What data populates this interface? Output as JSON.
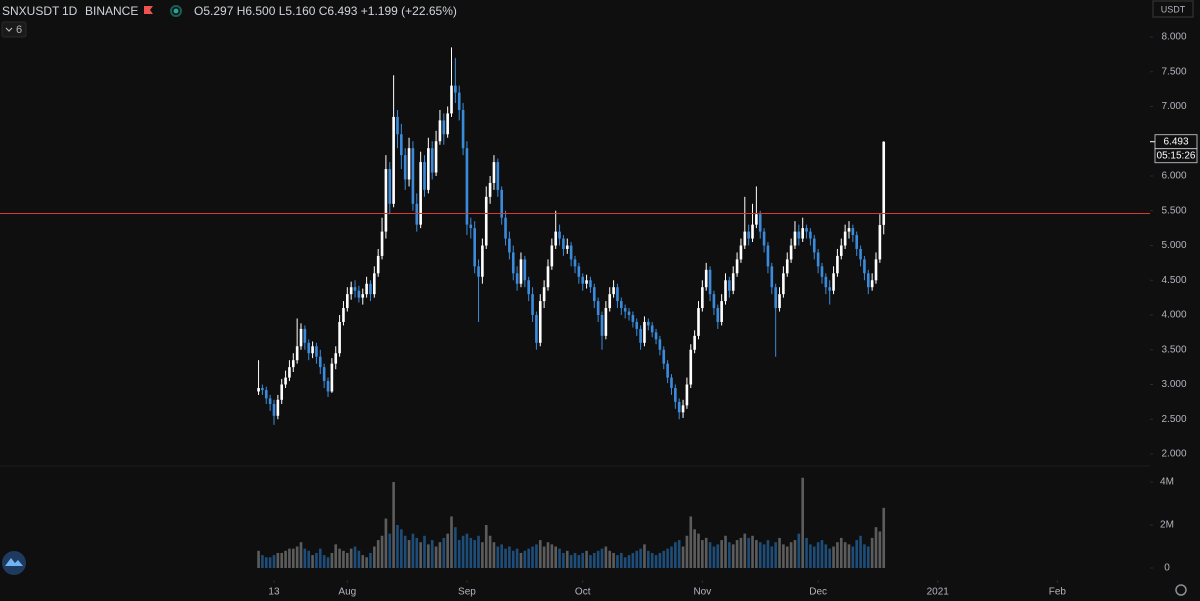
{
  "chart_data": {
    "type": "candlestick",
    "symbol": "SNXUSDT",
    "interval": "1D",
    "exchange": "BINANCE",
    "ohlc_legend": "O5.297 H6.500 L5.160 C6.493 +1.199 (+22.65%)",
    "indicators_hidden": 6,
    "currency": "USDT",
    "countdown": "05:15:26",
    "up_color": "#ffffff",
    "down_color": "#3b8bdb",
    "open": [
      2.9,
      2.95,
      2.92,
      2.8,
      2.72,
      2.55,
      2.78,
      3.0,
      3.1,
      3.25,
      3.35,
      3.55,
      3.8,
      3.6,
      3.45,
      3.55,
      3.4,
      3.25,
      3.05,
      2.9,
      3.3,
      3.45,
      3.9,
      4.1,
      4.3,
      4.4,
      4.35,
      4.25,
      4.3,
      4.45,
      4.3,
      4.6,
      4.85,
      5.2,
      6.1,
      5.6,
      6.85,
      6.6,
      6.3,
      5.95,
      6.4,
      5.6,
      5.3,
      6.2,
      5.8,
      6.4,
      6.05,
      6.5,
      6.8,
      6.6,
      6.9,
      7.3,
      7.2,
      6.95,
      6.4,
      5.3,
      5.25,
      4.7,
      4.55,
      5.0,
      5.7,
      5.9,
      6.2,
      5.8,
      5.4,
      5.1,
      4.9,
      4.6,
      4.45,
      4.8,
      4.5,
      4.3,
      4.0,
      3.6,
      4.2,
      4.4,
      4.7,
      5.0,
      5.2,
      5.1,
      4.95,
      5.0,
      4.8,
      4.7,
      4.55,
      4.45,
      4.5,
      4.4,
      4.2,
      4.0,
      3.7,
      4.1,
      4.3,
      4.4,
      4.2,
      4.1,
      4.05,
      4.0,
      3.9,
      3.8,
      3.6,
      3.9,
      3.85,
      3.75,
      3.65,
      3.5,
      3.3,
      3.1,
      2.95,
      2.75,
      2.6,
      2.7,
      3.0,
      3.5,
      3.7,
      4.1,
      4.4,
      4.65,
      4.3,
      4.1,
      3.9,
      4.2,
      4.5,
      4.35,
      4.6,
      4.8,
      5.0,
      5.2,
      5.1,
      5.3,
      5.45,
      5.2,
      5.0,
      4.7,
      4.4,
      4.1,
      4.3,
      4.6,
      4.8,
      5.0,
      5.2,
      5.1,
      5.25,
      5.2,
      5.1,
      4.9,
      4.7,
      4.55,
      4.4,
      4.35,
      4.6,
      4.85,
      5.0,
      5.2,
      5.25,
      5.15,
      4.95,
      4.8,
      4.6,
      4.4,
      4.5,
      4.8,
      5.297
    ],
    "high": [
      3.35,
      3.0,
      2.97,
      2.85,
      2.78,
      2.85,
      3.08,
      3.2,
      3.35,
      3.45,
      3.95,
      3.88,
      3.85,
      3.65,
      3.62,
      3.6,
      3.5,
      3.3,
      3.1,
      3.38,
      3.55,
      4.0,
      4.2,
      4.4,
      4.48,
      4.5,
      4.42,
      4.38,
      4.55,
      4.5,
      4.7,
      4.95,
      5.4,
      6.3,
      6.2,
      7.45,
      6.95,
      6.75,
      6.4,
      6.55,
      6.5,
      5.75,
      6.35,
      6.3,
      6.55,
      6.5,
      6.65,
      6.95,
      6.9,
      7.0,
      7.85,
      7.7,
      7.3,
      7.05,
      6.5,
      5.4,
      5.35,
      4.8,
      5.1,
      5.85,
      6.0,
      6.3,
      6.25,
      5.85,
      5.5,
      5.2,
      5.0,
      4.7,
      4.9,
      4.85,
      4.55,
      4.4,
      4.05,
      4.3,
      4.5,
      4.8,
      5.1,
      5.5,
      5.3,
      5.15,
      5.1,
      5.05,
      4.85,
      4.75,
      4.6,
      4.58,
      4.55,
      4.45,
      4.25,
      4.05,
      4.2,
      4.4,
      4.5,
      4.45,
      4.25,
      4.15,
      4.1,
      4.05,
      3.95,
      3.85,
      3.98,
      3.95,
      3.9,
      3.8,
      3.7,
      3.55,
      3.35,
      3.15,
      3.0,
      2.8,
      2.78,
      3.1,
      3.58,
      3.78,
      4.2,
      4.5,
      4.75,
      4.7,
      4.35,
      4.15,
      4.3,
      4.6,
      4.55,
      4.7,
      4.9,
      5.1,
      5.7,
      5.3,
      5.6,
      5.85,
      5.5,
      5.25,
      5.05,
      4.75,
      4.45,
      4.4,
      4.7,
      4.9,
      5.1,
      5.35,
      5.3,
      5.4,
      5.3,
      5.25,
      5.15,
      4.95,
      4.75,
      4.6,
      4.5,
      4.7,
      4.95,
      5.1,
      5.3,
      5.35,
      5.3,
      5.2,
      5.0,
      4.85,
      4.65,
      4.6,
      4.9,
      5.45,
      6.5
    ],
    "low": [
      2.85,
      2.85,
      2.72,
      2.62,
      2.42,
      2.5,
      2.72,
      2.95,
      3.05,
      3.18,
      3.3,
      3.5,
      3.5,
      3.35,
      3.38,
      3.3,
      3.15,
      2.95,
      2.82,
      2.88,
      3.22,
      3.4,
      3.85,
      4.05,
      4.22,
      4.25,
      4.18,
      4.15,
      4.25,
      4.2,
      4.25,
      4.55,
      4.8,
      5.1,
      5.45,
      5.55,
      6.4,
      6.1,
      5.8,
      5.85,
      5.5,
      5.2,
      5.25,
      5.7,
      5.75,
      5.95,
      6.0,
      6.45,
      6.45,
      6.55,
      6.85,
      7.05,
      6.8,
      6.3,
      5.15,
      5.1,
      4.6,
      3.9,
      4.45,
      4.95,
      5.6,
      5.8,
      5.7,
      5.3,
      5.0,
      4.8,
      4.5,
      4.35,
      4.4,
      4.4,
      4.2,
      3.9,
      3.5,
      3.55,
      4.1,
      4.35,
      4.65,
      4.95,
      5.0,
      4.85,
      4.88,
      4.7,
      4.6,
      4.45,
      4.35,
      4.38,
      4.32,
      4.1,
      3.9,
      3.5,
      3.65,
      4.05,
      4.25,
      4.1,
      4.0,
      3.95,
      3.92,
      3.82,
      3.7,
      3.5,
      3.55,
      3.78,
      3.68,
      3.58,
      3.42,
      3.22,
      3.02,
      2.85,
      2.65,
      2.5,
      2.52,
      2.65,
      2.95,
      3.45,
      3.65,
      4.05,
      4.35,
      4.2,
      4.0,
      3.8,
      3.85,
      4.15,
      4.25,
      4.3,
      4.55,
      4.75,
      4.95,
      5.0,
      5.05,
      5.25,
      5.1,
      4.9,
      4.6,
      4.3,
      3.4,
      4.05,
      4.25,
      4.55,
      4.75,
      4.95,
      5.0,
      5.05,
      5.1,
      5.0,
      4.8,
      4.6,
      4.45,
      4.3,
      4.15,
      4.3,
      4.55,
      4.8,
      4.95,
      5.1,
      5.05,
      4.85,
      4.7,
      4.5,
      4.3,
      4.35,
      4.45,
      4.75,
      5.16
    ],
    "close": [
      2.95,
      2.92,
      2.8,
      2.72,
      2.55,
      2.78,
      3.0,
      3.1,
      3.25,
      3.35,
      3.55,
      3.8,
      3.6,
      3.45,
      3.55,
      3.4,
      3.25,
      3.05,
      2.9,
      3.3,
      3.45,
      3.9,
      4.1,
      4.3,
      4.4,
      4.35,
      4.25,
      4.3,
      4.45,
      4.3,
      4.6,
      4.85,
      5.2,
      6.1,
      5.6,
      6.85,
      6.6,
      6.3,
      5.95,
      6.4,
      5.6,
      5.3,
      6.2,
      5.8,
      6.4,
      6.05,
      6.5,
      6.8,
      6.6,
      6.9,
      7.3,
      7.2,
      6.95,
      6.4,
      5.3,
      5.25,
      4.7,
      4.55,
      5.0,
      5.7,
      5.9,
      6.2,
      5.8,
      5.4,
      5.1,
      4.9,
      4.6,
      4.45,
      4.8,
      4.5,
      4.3,
      4.0,
      3.6,
      4.2,
      4.4,
      4.7,
      5.0,
      5.2,
      5.1,
      4.95,
      5.0,
      4.8,
      4.7,
      4.55,
      4.45,
      4.5,
      4.4,
      4.2,
      4.0,
      3.7,
      4.1,
      4.3,
      4.4,
      4.2,
      4.1,
      4.05,
      4.0,
      3.9,
      3.8,
      3.6,
      3.9,
      3.85,
      3.75,
      3.65,
      3.5,
      3.3,
      3.1,
      2.95,
      2.75,
      2.6,
      2.7,
      3.0,
      3.5,
      3.7,
      4.1,
      4.4,
      4.65,
      4.3,
      4.1,
      3.9,
      4.2,
      4.5,
      4.35,
      4.6,
      4.8,
      5.0,
      5.2,
      5.1,
      5.3,
      5.45,
      5.2,
      5.0,
      4.7,
      4.4,
      4.1,
      4.3,
      4.6,
      4.8,
      5.0,
      5.2,
      5.1,
      5.25,
      5.2,
      5.1,
      4.9,
      4.7,
      4.55,
      4.4,
      4.35,
      4.6,
      4.85,
      5.0,
      5.2,
      5.25,
      5.15,
      4.95,
      4.8,
      4.6,
      4.4,
      4.5,
      4.8,
      5.294,
      6.493
    ],
    "xlim": [
      -67,
      231
    ],
    "xticks": [
      {
        "value": 4,
        "label": "13"
      },
      {
        "value": 23,
        "label": "Aug"
      },
      {
        "value": 54,
        "label": "Sep"
      },
      {
        "value": 84,
        "label": "Oct"
      },
      {
        "value": 115,
        "label": "Nov"
      },
      {
        "value": 145,
        "label": "Dec"
      },
      {
        "value": 176,
        "label": "2021"
      },
      {
        "value": 207,
        "label": "Feb"
      }
    ],
    "ylim": [
      1.842,
      8.532
    ],
    "yticks": [
      {
        "value": 2,
        "label": "2.000"
      },
      {
        "value": 2.5,
        "label": "2.500"
      },
      {
        "value": 3,
        "label": "3.000"
      },
      {
        "value": 3.5,
        "label": "3.500"
      },
      {
        "value": 4,
        "label": "4.000"
      },
      {
        "value": 4.5,
        "label": "4.500"
      },
      {
        "value": 5,
        "label": "5.000"
      },
      {
        "value": 5.5,
        "label": "5.500"
      },
      {
        "value": 6,
        "label": "6.000"
      },
      {
        "value": 6.5,
        "label": "6.500"
      },
      {
        "value": 7,
        "label": "7.000"
      },
      {
        "value": 7.5,
        "label": "7.500"
      },
      {
        "value": 8,
        "label": "8.000"
      }
    ],
    "hline": {
      "value": 5.46,
      "color": "#d8392f"
    },
    "volume": {
      "up_color": "#5c5c5c",
      "down_color": "#1d4d78",
      "values": [
        0.8,
        0.6,
        0.5,
        0.5,
        0.6,
        0.7,
        0.7,
        0.8,
        0.9,
        0.9,
        1.0,
        1.2,
        0.9,
        0.8,
        0.6,
        0.7,
        0.9,
        0.6,
        0.5,
        0.7,
        1.1,
        0.9,
        0.8,
        0.7,
        0.9,
        1.0,
        0.8,
        0.6,
        0.5,
        0.7,
        1.0,
        1.3,
        1.5,
        2.3,
        1.6,
        4.0,
        2.0,
        1.8,
        1.5,
        1.3,
        1.6,
        1.4,
        1.2,
        1.5,
        1.1,
        1.3,
        1.0,
        1.2,
        1.4,
        1.6,
        2.4,
        1.9,
        1.3,
        1.5,
        1.6,
        1.4,
        1.3,
        1.5,
        1.2,
        2.0,
        1.5,
        1.2,
        1.0,
        1.1,
        0.9,
        1.0,
        0.8,
        0.9,
        0.7,
        0.8,
        0.9,
        1.0,
        1.1,
        1.3,
        1.0,
        1.2,
        1.1,
        1.0,
        0.9,
        0.7,
        0.8,
        0.6,
        0.7,
        0.6,
        0.7,
        0.8,
        0.6,
        0.7,
        0.8,
        0.9,
        1.0,
        0.8,
        0.7,
        0.6,
        0.7,
        0.5,
        0.6,
        0.7,
        0.8,
        0.9,
        1.1,
        0.8,
        0.7,
        0.6,
        0.7,
        0.8,
        0.9,
        1.0,
        1.2,
        1.3,
        1.0,
        1.5,
        2.4,
        1.8,
        1.6,
        1.3,
        1.4,
        1.2,
        1.0,
        1.1,
        1.3,
        1.5,
        1.2,
        1.1,
        1.3,
        1.4,
        1.6,
        1.4,
        1.5,
        1.3,
        1.2,
        1.1,
        1.3,
        1.0,
        1.2,
        1.4,
        1.1,
        1.0,
        1.2,
        1.3,
        1.6,
        4.2,
        1.4,
        1.1,
        1.0,
        1.2,
        1.3,
        1.1,
        0.9,
        1.0,
        1.2,
        1.4,
        1.2,
        1.1,
        1.0,
        1.3,
        1.5,
        1.1,
        1.0,
        1.4,
        1.9,
        1.7,
        2.8
      ],
      "ylim": [
        0,
        4.7
      ],
      "yticks": [
        0,
        {
          "value": 2,
          "label": "2M"
        },
        {
          "value": 4,
          "label": "4M"
        }
      ]
    }
  }
}
